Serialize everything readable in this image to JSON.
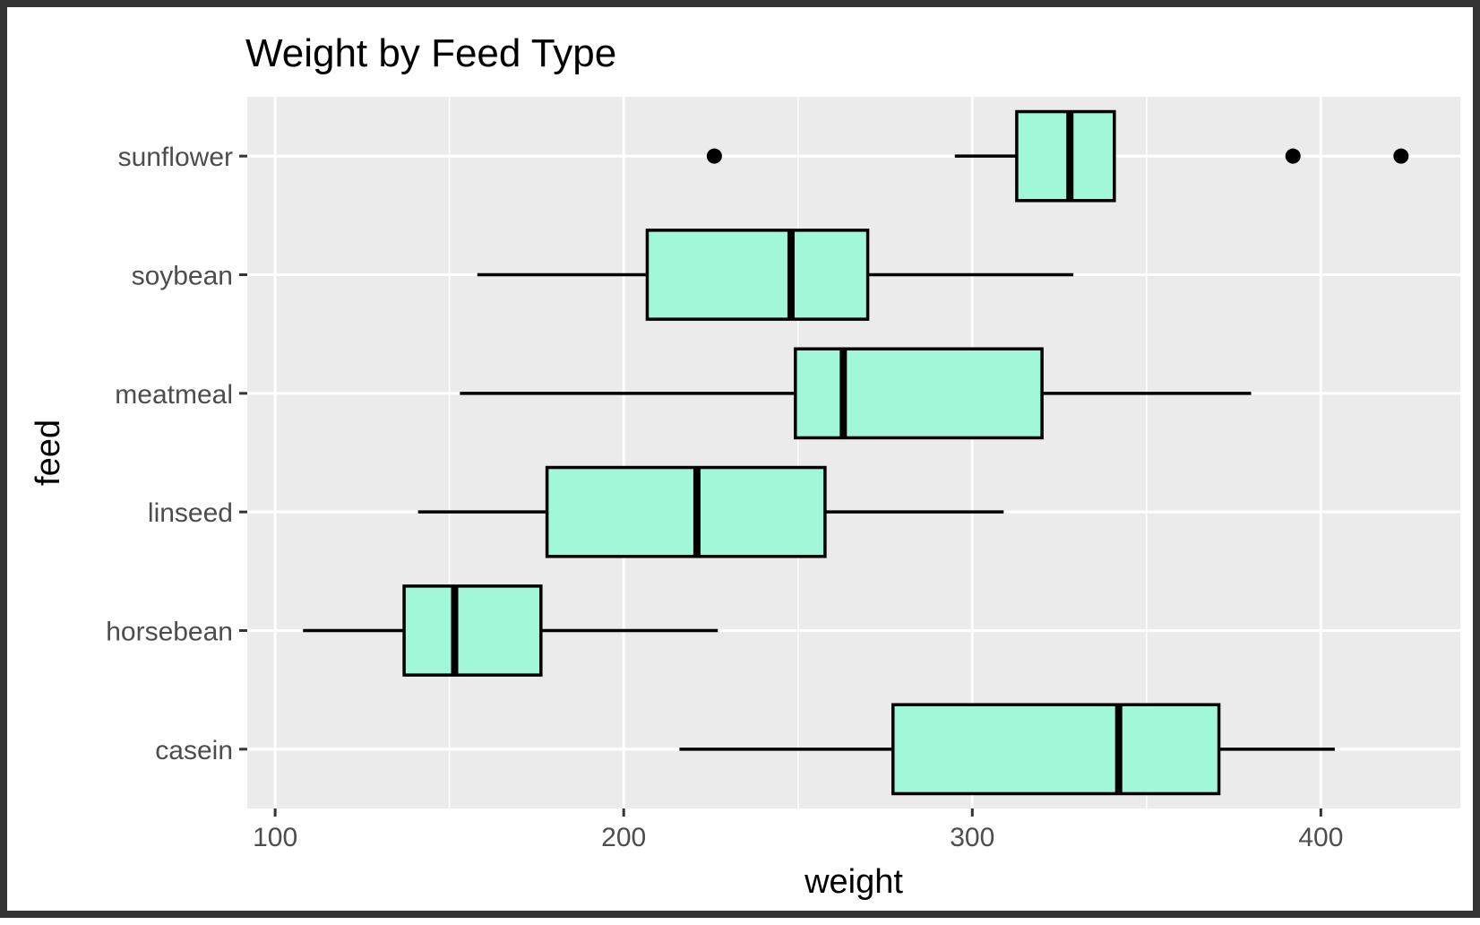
{
  "chart_data": {
    "type": "boxplot",
    "orientation": "horizontal",
    "title": "Weight by Feed Type",
    "xlabel": "weight",
    "ylabel": "feed",
    "xlim": [
      92,
      440
    ],
    "x_ticks": [
      100,
      200,
      300,
      400
    ],
    "categories": [
      "casein",
      "horsebean",
      "linseed",
      "meatmeal",
      "soybean",
      "sunflower"
    ],
    "boxes": [
      {
        "category": "casein",
        "whisker_low": 216,
        "q1": 277.25,
        "median": 342,
        "q3": 370.75,
        "whisker_high": 404,
        "outliers": []
      },
      {
        "category": "horsebean",
        "whisker_low": 108,
        "q1": 137,
        "median": 151.5,
        "q3": 176.25,
        "whisker_high": 227,
        "outliers": []
      },
      {
        "category": "linseed",
        "whisker_low": 141,
        "q1": 178,
        "median": 221,
        "q3": 257.75,
        "whisker_high": 309,
        "outliers": []
      },
      {
        "category": "meatmeal",
        "whisker_low": 153,
        "q1": 249.25,
        "median": 263,
        "q3": 320,
        "whisker_high": 380,
        "outliers": []
      },
      {
        "category": "soybean",
        "whisker_low": 158,
        "q1": 206.75,
        "median": 248,
        "q3": 270,
        "whisker_high": 329,
        "outliers": []
      },
      {
        "category": "sunflower",
        "whisker_low": 295,
        "q1": 312.75,
        "median": 328,
        "q3": 340.75,
        "whisker_high": 341,
        "outliers": [
          226,
          392,
          423
        ]
      }
    ],
    "box_fill": "#a0f8d8",
    "panel_background": "#ebebeb",
    "grid": true,
    "legend": "none"
  }
}
